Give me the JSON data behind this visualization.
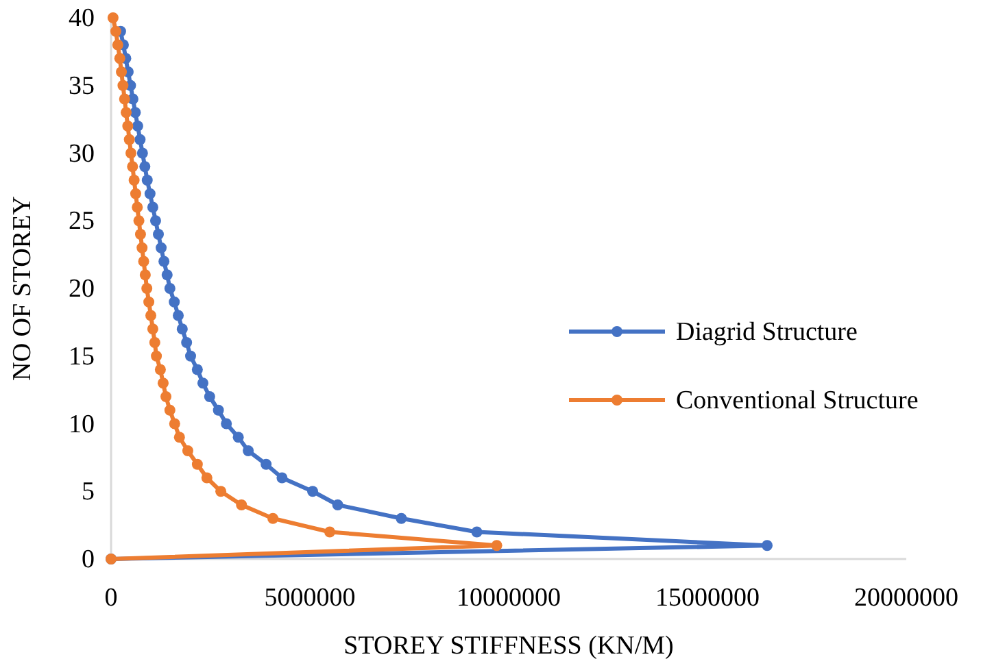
{
  "chart_data": {
    "type": "line",
    "xlabel": "STOREY STIFFNESS (KN/M)",
    "ylabel": "NO OF STOREY",
    "xlim": [
      0,
      20000000
    ],
    "xticks": [
      0,
      5000000,
      10000000,
      15000000,
      20000000
    ],
    "ylim": [
      0,
      40
    ],
    "yticks": [
      0,
      5,
      10,
      15,
      20,
      25,
      30,
      35,
      40
    ],
    "grid": false,
    "legend": "right",
    "marker": "circle",
    "line_style": "solid",
    "series": [
      {
        "name": "Diagrid Structure",
        "color": "#4472c4",
        "x": [
          0,
          16500000,
          9200000,
          7300000,
          5700000,
          5070000,
          4300000,
          3900000,
          3450000,
          3200000,
          2900000,
          2700000,
          2480000,
          2310000,
          2170000,
          2000000,
          1900000,
          1790000,
          1690000,
          1590000,
          1480000,
          1410000,
          1330000,
          1260000,
          1190000,
          1120000,
          1050000,
          980000,
          910000,
          850000,
          790000,
          730000,
          670000,
          610000,
          550000,
          490000,
          430000,
          370000,
          310000,
          240000,
          null
        ],
        "values": [
          0,
          1,
          2,
          3,
          4,
          5,
          6,
          7,
          8,
          9,
          10,
          11,
          12,
          13,
          14,
          15,
          16,
          17,
          18,
          19,
          20,
          21,
          22,
          23,
          24,
          25,
          26,
          27,
          28,
          29,
          30,
          31,
          32,
          33,
          34,
          35,
          36,
          37,
          38,
          39,
          null
        ]
      },
      {
        "name": "Conventional Structure",
        "color": "#ed7d31",
        "x": [
          0,
          9700000,
          5500000,
          4070000,
          3280000,
          2760000,
          2410000,
          2170000,
          1930000,
          1720000,
          1600000,
          1480000,
          1380000,
          1310000,
          1240000,
          1140000,
          1100000,
          1050000,
          1000000,
          950000,
          900000,
          860000,
          820000,
          780000,
          740000,
          700000,
          660000,
          620000,
          580000,
          540000,
          500000,
          460000,
          420000,
          380000,
          340000,
          300000,
          260000,
          220000,
          170000,
          120000,
          50000
        ],
        "values": [
          0,
          1,
          2,
          3,
          4,
          5,
          6,
          7,
          8,
          9,
          10,
          11,
          12,
          13,
          14,
          15,
          16,
          17,
          18,
          19,
          20,
          21,
          22,
          23,
          24,
          25,
          26,
          27,
          28,
          29,
          30,
          31,
          32,
          33,
          34,
          35,
          36,
          37,
          38,
          39,
          40
        ]
      }
    ]
  }
}
